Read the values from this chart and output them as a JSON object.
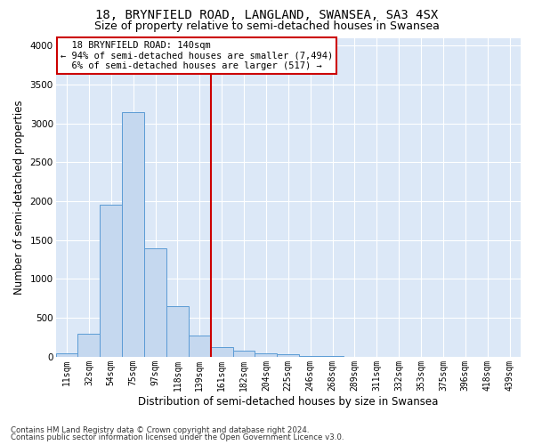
{
  "title": "18, BRYNFIELD ROAD, LANGLAND, SWANSEA, SA3 4SX",
  "subtitle": "Size of property relative to semi-detached houses in Swansea",
  "xlabel": "Distribution of semi-detached houses by size in Swansea",
  "ylabel": "Number of semi-detached properties",
  "footnote1": "Contains HM Land Registry data © Crown copyright and database right 2024.",
  "footnote2": "Contains public sector information licensed under the Open Government Licence v3.0.",
  "categories": [
    "11sqm",
    "32sqm",
    "54sqm",
    "75sqm",
    "97sqm",
    "118sqm",
    "139sqm",
    "161sqm",
    "182sqm",
    "204sqm",
    "225sqm",
    "246sqm",
    "268sqm",
    "289sqm",
    "311sqm",
    "332sqm",
    "353sqm",
    "375sqm",
    "396sqm",
    "418sqm",
    "439sqm"
  ],
  "values": [
    50,
    300,
    1950,
    3150,
    1400,
    650,
    275,
    120,
    75,
    50,
    30,
    15,
    8,
    4,
    2,
    1,
    0,
    0,
    0,
    0,
    0
  ],
  "bar_color": "#c5d8ef",
  "bar_edge_color": "#5b9bd5",
  "property_sqm": 140,
  "pct_smaller": 94,
  "count_smaller": 7494,
  "pct_larger": 6,
  "count_larger": 517,
  "annotation_label": "18 BRYNFIELD ROAD: 140sqm",
  "annotation_line_color": "#cc0000",
  "annotation_box_color": "#cc0000",
  "ylim": [
    0,
    4100
  ],
  "bg_color": "#dce8f7",
  "grid_color": "#ffffff",
  "title_fontsize": 10,
  "subtitle_fontsize": 9,
  "axis_fontsize": 8.5,
  "tick_fontsize": 7
}
